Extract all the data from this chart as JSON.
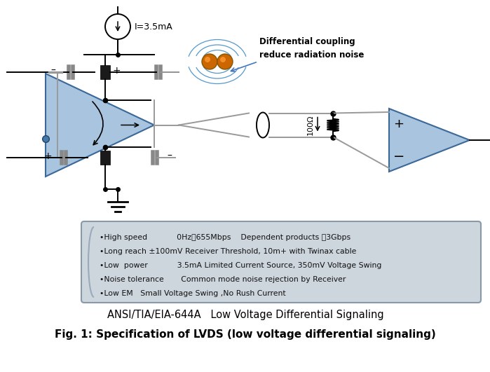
{
  "title": "Fig. 1: Specification of LVDS (low voltage differential signaling)",
  "subtitle": "ANSI/TIA/EIA-644A   Low Voltage Differential Signaling",
  "box_lines": [
    "•High speed            0Hz～655Mbps    Dependent products ～3Gbps",
    "•Long reach ±100mV Receiver Threshold, 10m+ with Twinax cable",
    "•Low  power            3.5mA Limited Current Source, 350mV Voltage Swing",
    "•Noise tolerance       Common mode noise rejection by Receiver",
    "•Low EM   Small Voltage Swing ,No Rush Current"
  ],
  "current_source_label": "I=3.5mA",
  "resistor_label": "100Ω",
  "annotation_line1": "Differential coupling",
  "annotation_line2": "reduce radiation noise",
  "triangle_color": "#a8c4de",
  "bg_color": "#ffffff",
  "box_bg": "#cdd5dd",
  "cap_color": "#888888",
  "wire_color": "#000000",
  "gray_wire": "#999999"
}
